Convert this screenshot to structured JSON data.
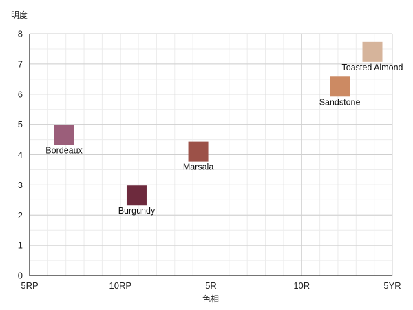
{
  "chart_data": {
    "type": "scatter",
    "xlabel": "色相",
    "ylabel": "明度",
    "xlim": [
      0,
      20
    ],
    "ylim": [
      0,
      8
    ],
    "x_ticks": [
      {
        "value": 0,
        "label": "5RP"
      },
      {
        "value": 5,
        "label": "10RP"
      },
      {
        "value": 10,
        "label": "5R"
      },
      {
        "value": 15,
        "label": "10R"
      },
      {
        "value": 20,
        "label": "5YR"
      }
    ],
    "y_ticks": [
      0,
      1,
      2,
      3,
      4,
      5,
      6,
      7,
      8
    ],
    "minor_x_step": 1,
    "minor_y_step": 0.5,
    "grid": true,
    "points": [
      {
        "name": "Bordeaux",
        "x": 1.9,
        "y": 4.65,
        "color": "#9b5e7a"
      },
      {
        "name": "Burgundy",
        "x": 5.9,
        "y": 2.65,
        "color": "#6d2a3d"
      },
      {
        "name": "Marsala",
        "x": 9.3,
        "y": 4.1,
        "color": "#9c5148"
      },
      {
        "name": "Sandstone",
        "x": 17.1,
        "y": 6.25,
        "color": "#cc8a63"
      },
      {
        "name": "Toasted Almond",
        "x": 18.9,
        "y": 7.4,
        "color": "#d6b49b"
      }
    ]
  }
}
